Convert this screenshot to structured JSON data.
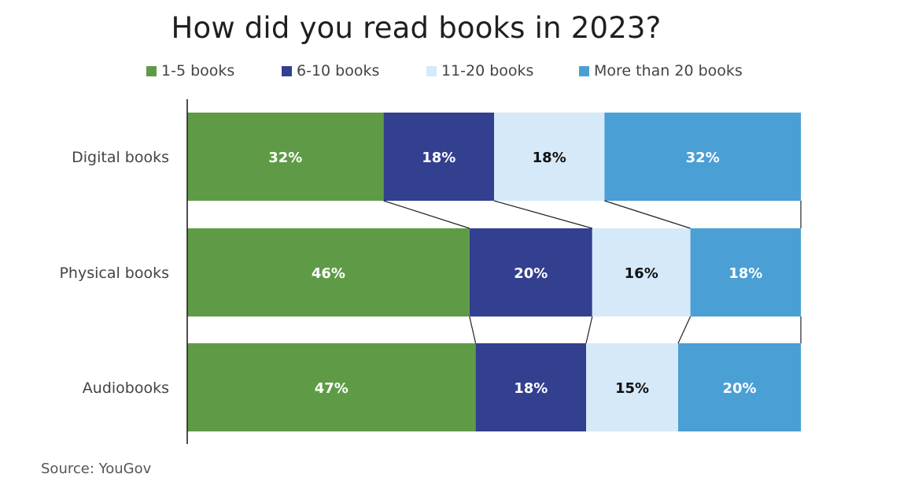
{
  "chart_data": {
    "type": "bar",
    "orientation": "horizontal",
    "stacked": true,
    "normalized": true,
    "title": "How did you read books in 2023?",
    "categories": [
      "Digital books",
      "Physical books",
      "Audiobooks"
    ],
    "series": [
      {
        "name": "1-5 books",
        "color": "#5f9b47",
        "label_color": "#ffffff",
        "values": [
          32,
          46,
          47
        ]
      },
      {
        "name": "6-10 books",
        "color": "#333f8f",
        "label_color": "#ffffff",
        "values": [
          18,
          20,
          18
        ]
      },
      {
        "name": "11-20 books",
        "color": "#d6e9f8",
        "label_color": "#111111",
        "values": [
          18,
          16,
          15
        ]
      },
      {
        "name": "More than 20 books",
        "color": "#4a9fd5",
        "label_color": "#ffffff",
        "values": [
          32,
          18,
          20
        ]
      }
    ],
    "value_suffix": "%",
    "legend_position": "top",
    "grid": false,
    "source": "Source: YouGov"
  }
}
